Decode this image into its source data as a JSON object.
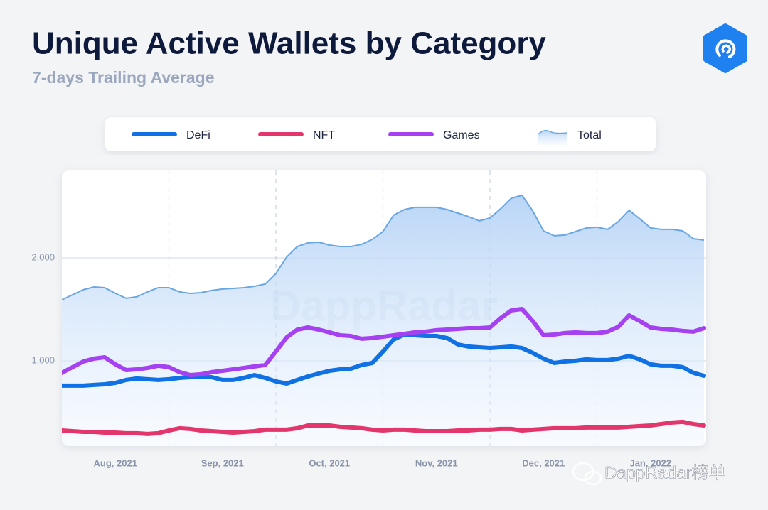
{
  "chart_data": {
    "type": "line",
    "title": "Unique Active Wallets by Category",
    "subtitle": "7-days Trailing Average",
    "watermark": "DappRadar",
    "categories": [
      null,
      null,
      null,
      null,
      null,
      "Aug, 2021",
      null,
      null,
      null,
      null,
      null,
      null,
      null,
      null,
      null,
      "Sep, 2021",
      null,
      null,
      null,
      null,
      null,
      null,
      null,
      null,
      null,
      "Oct, 2021",
      null,
      null,
      null,
      null,
      null,
      null,
      null,
      null,
      null,
      "Nov, 2021",
      null,
      null,
      null,
      null,
      null,
      null,
      null,
      null,
      null,
      "Dec, 2021",
      null,
      null,
      null,
      null,
      null,
      null,
      null,
      null,
      null,
      "Jan, 2022",
      null,
      null,
      null,
      null,
      null
    ],
    "series": [
      {
        "name": "DeFi",
        "color": "#1071e5",
        "values": [
          759,
          759,
          759,
          766,
          772,
          786,
          814,
          828,
          821,
          814,
          821,
          834,
          841,
          848,
          841,
          814,
          814,
          834,
          862,
          834,
          800,
          779,
          814,
          848,
          876,
          903,
          917,
          924,
          959,
          979,
          1090,
          1207,
          1255,
          1248,
          1241,
          1241,
          1221,
          1159,
          1138,
          1131,
          1124,
          1131,
          1138,
          1124,
          1076,
          1021,
          979,
          993,
          1000,
          1014,
          1007,
          1007,
          1021,
          1048,
          1014,
          966,
          952,
          952,
          938,
          883,
          855
        ]
      },
      {
        "name": "NFT",
        "color": "#e3366c",
        "values": [
          324,
          317,
          310,
          310,
          303,
          303,
          297,
          297,
          290,
          297,
          324,
          345,
          338,
          324,
          317,
          310,
          303,
          310,
          317,
          331,
          331,
          331,
          345,
          372,
          372,
          372,
          359,
          352,
          345,
          331,
          324,
          331,
          331,
          324,
          317,
          317,
          317,
          324,
          324,
          331,
          331,
          338,
          338,
          324,
          331,
          338,
          345,
          345,
          345,
          352,
          352,
          352,
          352,
          359,
          366,
          372,
          386,
          400,
          407,
          386,
          372
        ]
      },
      {
        "name": "Games",
        "color": "#a541f0",
        "values": [
          883,
          938,
          993,
          1021,
          1034,
          966,
          910,
          917,
          931,
          952,
          938,
          890,
          862,
          869,
          890,
          903,
          917,
          931,
          945,
          959,
          1090,
          1228,
          1303,
          1324,
          1303,
          1276,
          1248,
          1241,
          1214,
          1221,
          1234,
          1248,
          1262,
          1276,
          1283,
          1297,
          1303,
          1310,
          1317,
          1317,
          1324,
          1414,
          1490,
          1503,
          1386,
          1248,
          1255,
          1269,
          1276,
          1269,
          1269,
          1283,
          1331,
          1441,
          1386,
          1324,
          1310,
          1303,
          1290,
          1283,
          1317
        ]
      },
      {
        "name": "Total",
        "color": "#6aa6e4",
        "area": true,
        "values": [
          1593,
          1641,
          1690,
          1717,
          1710,
          1655,
          1607,
          1621,
          1669,
          1710,
          1710,
          1669,
          1655,
          1662,
          1683,
          1697,
          1703,
          1710,
          1724,
          1745,
          1848,
          2007,
          2110,
          2145,
          2152,
          2124,
          2110,
          2110,
          2131,
          2179,
          2255,
          2414,
          2469,
          2490,
          2490,
          2490,
          2469,
          2434,
          2400,
          2359,
          2386,
          2476,
          2579,
          2607,
          2455,
          2262,
          2214,
          2221,
          2255,
          2290,
          2297,
          2276,
          2352,
          2462,
          2379,
          2290,
          2276,
          2276,
          2262,
          2186,
          2172
        ]
      }
    ],
    "legend_order": [
      0,
      1,
      2,
      3
    ],
    "ylim": [
      172,
      2848
    ],
    "yticks": [
      {
        "value": 1000,
        "label": "1,000"
      },
      {
        "value": 2000,
        "label": "2,000"
      }
    ],
    "grid": true
  },
  "overlay_caption": "DappRadar榜单"
}
